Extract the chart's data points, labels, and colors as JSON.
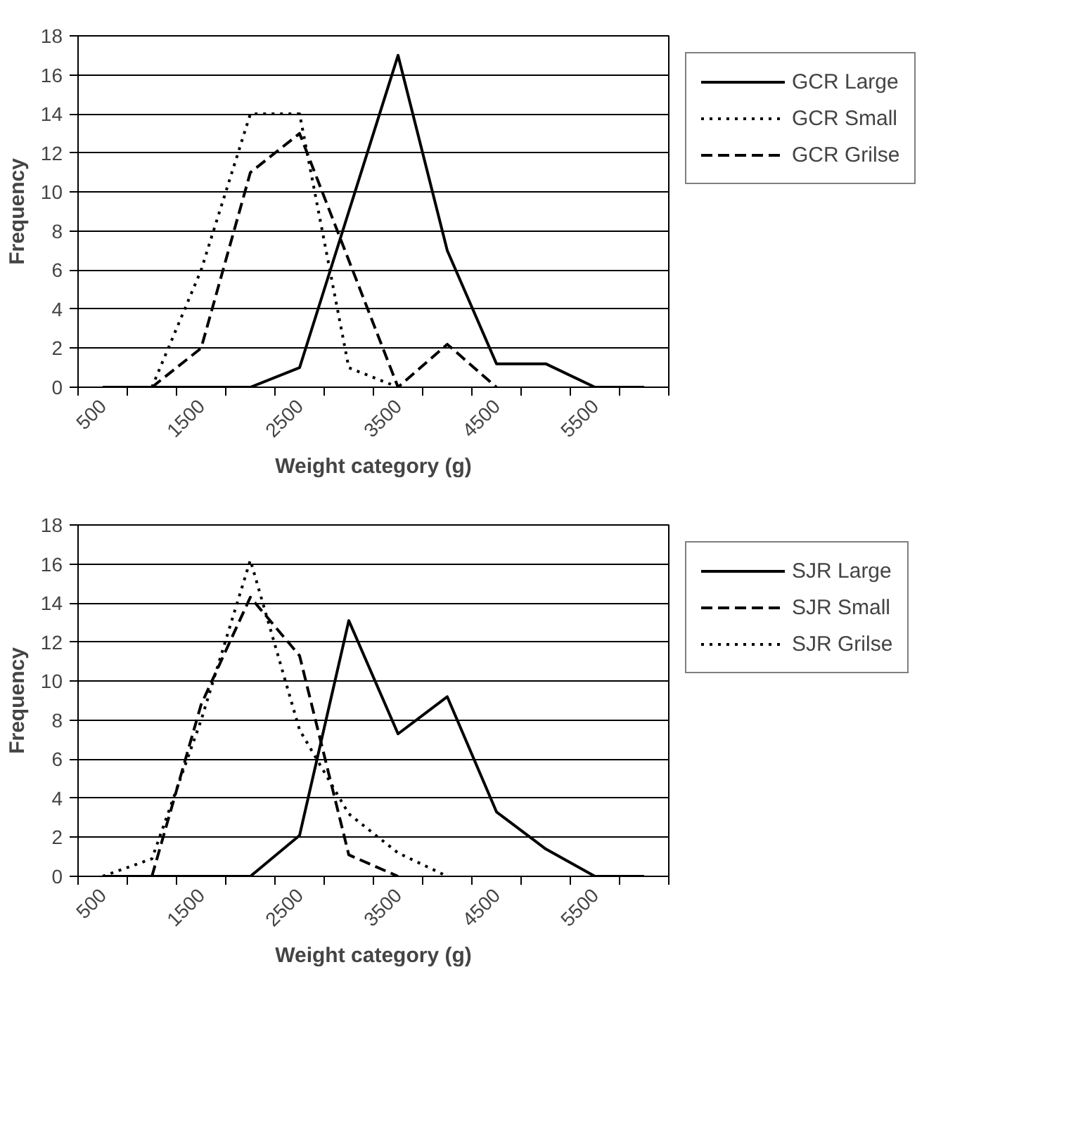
{
  "chart_data": [
    {
      "type": "line",
      "xlabel": "Weight category (g)",
      "ylabel": "Frequency",
      "categories": [
        "500",
        null,
        "1500",
        null,
        "2500",
        null,
        "3500",
        null,
        "4500",
        null,
        "5500",
        null
      ],
      "ylim": [
        0,
        18
      ],
      "yticks": [
        0,
        2,
        4,
        6,
        8,
        10,
        12,
        14,
        16,
        18
      ],
      "grid": "y",
      "legend": "right",
      "series": [
        {
          "name": "GCR Large",
          "color": "#000000",
          "line_style": "solid",
          "values": [
            0,
            0,
            0,
            0,
            1,
            9,
            17,
            7,
            1.2,
            1.2,
            0,
            0
          ]
        },
        {
          "name": "GCR Small",
          "color": "#000000",
          "line_style": "dotted",
          "values": [
            null,
            0,
            6,
            14,
            14,
            1,
            0,
            null,
            null,
            null,
            null,
            null
          ]
        },
        {
          "name": "GCR Grilse",
          "color": "#000000",
          "line_style": "dashed",
          "values": [
            null,
            0,
            2,
            11,
            13,
            6.5,
            0,
            2.2,
            0,
            null,
            null,
            null
          ]
        }
      ]
    },
    {
      "type": "line",
      "xlabel": "Weight category (g)",
      "ylabel": "Frequency",
      "categories": [
        "500",
        null,
        "1500",
        null,
        "2500",
        null,
        "3500",
        null,
        "4500",
        null,
        "5500",
        null
      ],
      "ylim": [
        0,
        18
      ],
      "yticks": [
        0,
        2,
        4,
        6,
        8,
        10,
        12,
        14,
        16,
        18
      ],
      "grid": "y",
      "legend": "right",
      "series": [
        {
          "name": "SJR Large",
          "color": "#000000",
          "line_style": "solid",
          "values": [
            0,
            0,
            0,
            0,
            2.1,
            13.1,
            7.3,
            9.2,
            3.3,
            1.4,
            0,
            0
          ]
        },
        {
          "name": "SJR Small",
          "color": "#000000",
          "line_style": "dashed",
          "values": [
            null,
            0,
            8.8,
            14.3,
            11.3,
            1.1,
            0,
            null,
            null,
            null,
            null,
            null
          ]
        },
        {
          "name": "SJR Grilse",
          "color": "#000000",
          "line_style": "dotted",
          "values": [
            0,
            0.9,
            8,
            16.2,
            7.5,
            3.2,
            1.2,
            0,
            null,
            null,
            null,
            null
          ]
        }
      ]
    }
  ]
}
